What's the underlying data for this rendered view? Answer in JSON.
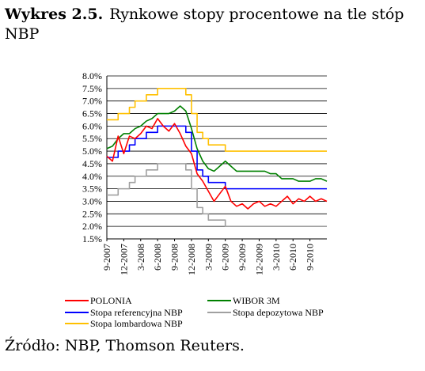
{
  "figure": {
    "label": "Wykres 2.5.",
    "title": "Rynkowe stopy procentowe na tle stóp NBP",
    "source": "Źródło: NBP, Thomson Reuters."
  },
  "chart_data": {
    "type": "line",
    "title": "Rynkowe stopy procentowe na tle stóp NBP",
    "xlabel": "",
    "ylabel": "",
    "ylim": [
      1.5,
      8.0
    ],
    "y_ticks": [
      "1.5%",
      "2.0%",
      "2.5%",
      "3.0%",
      "3.5%",
      "4.0%",
      "4.5%",
      "5.0%",
      "5.5%",
      "6.0%",
      "6.5%",
      "7.0%",
      "7.5%",
      "8.0%"
    ],
    "x_range": [
      "2007-09",
      "2010-12"
    ],
    "x_ticks": [
      "9-2007",
      "12-2007",
      "3-2008",
      "6-2008",
      "9-2008",
      "12-2008",
      "3-2009",
      "6-2009",
      "9-2009",
      "12-2009",
      "3-2010",
      "6-2010",
      "9-2010"
    ],
    "grid": "horizontal",
    "legend_position": "bottom",
    "series": [
      {
        "name": "POLONIA",
        "color": "#ff0000",
        "x": [
          "2007-09",
          "2007-10",
          "2007-11",
          "2007-12",
          "2008-01",
          "2008-02",
          "2008-03",
          "2008-04",
          "2008-05",
          "2008-06",
          "2008-07",
          "2008-08",
          "2008-09",
          "2008-10",
          "2008-11",
          "2008-12",
          "2009-01",
          "2009-02",
          "2009-03",
          "2009-04",
          "2009-05",
          "2009-06",
          "2009-07",
          "2009-08",
          "2009-09",
          "2009-10",
          "2009-11",
          "2009-12",
          "2010-01",
          "2010-02",
          "2010-03",
          "2010-04",
          "2010-05",
          "2010-06",
          "2010-07",
          "2010-08",
          "2010-09",
          "2010-10",
          "2010-11",
          "2010-12"
        ],
        "values": [
          4.8,
          4.6,
          5.6,
          4.9,
          5.6,
          5.5,
          5.7,
          6.0,
          5.9,
          6.3,
          6.0,
          5.8,
          6.1,
          5.7,
          5.2,
          4.9,
          4.1,
          3.8,
          3.4,
          3.0,
          3.3,
          3.6,
          3.0,
          2.8,
          2.9,
          2.7,
          2.9,
          3.0,
          2.8,
          2.9,
          2.8,
          3.0,
          3.2,
          2.9,
          3.1,
          3.0,
          3.2,
          3.0,
          3.1,
          3.0
        ]
      },
      {
        "name": "WIBOR 3M",
        "color": "#008000",
        "x": [
          "2007-09",
          "2007-10",
          "2007-11",
          "2007-12",
          "2008-01",
          "2008-02",
          "2008-03",
          "2008-04",
          "2008-05",
          "2008-06",
          "2008-07",
          "2008-08",
          "2008-09",
          "2008-10",
          "2008-11",
          "2008-12",
          "2009-01",
          "2009-02",
          "2009-03",
          "2009-04",
          "2009-05",
          "2009-06",
          "2009-07",
          "2009-08",
          "2009-09",
          "2009-10",
          "2009-11",
          "2009-12",
          "2010-01",
          "2010-02",
          "2010-03",
          "2010-04",
          "2010-05",
          "2010-06",
          "2010-07",
          "2010-08",
          "2010-09",
          "2010-10",
          "2010-11",
          "2010-12"
        ],
        "values": [
          5.1,
          5.2,
          5.5,
          5.7,
          5.7,
          5.9,
          6.0,
          6.2,
          6.3,
          6.5,
          6.5,
          6.5,
          6.6,
          6.8,
          6.6,
          5.9,
          5.1,
          4.6,
          4.3,
          4.2,
          4.4,
          4.6,
          4.4,
          4.2,
          4.2,
          4.2,
          4.2,
          4.2,
          4.2,
          4.1,
          4.1,
          3.9,
          3.9,
          3.9,
          3.8,
          3.8,
          3.8,
          3.9,
          3.9,
          3.8
        ]
      },
      {
        "name": "Stopa referencyjna NBP",
        "color": "#0000ff",
        "x": [
          "2007-09",
          "2007-10",
          "2007-11",
          "2007-12",
          "2008-01",
          "2008-02",
          "2008-03",
          "2008-04",
          "2008-05",
          "2008-06",
          "2008-07",
          "2008-08",
          "2008-09",
          "2008-10",
          "2008-11",
          "2008-12",
          "2009-01",
          "2009-02",
          "2009-03",
          "2009-04",
          "2009-05",
          "2009-06",
          "2009-07",
          "2009-08",
          "2009-09",
          "2009-10",
          "2009-11",
          "2009-12",
          "2010-01",
          "2010-02",
          "2010-03",
          "2010-04",
          "2010-05",
          "2010-06",
          "2010-07",
          "2010-08",
          "2010-09",
          "2010-10",
          "2010-11",
          "2010-12"
        ],
        "values": [
          4.75,
          4.75,
          5.0,
          5.0,
          5.25,
          5.5,
          5.5,
          5.75,
          5.75,
          6.0,
          6.0,
          6.0,
          6.0,
          6.0,
          5.75,
          5.0,
          4.25,
          4.0,
          3.75,
          3.75,
          3.75,
          3.5,
          3.5,
          3.5,
          3.5,
          3.5,
          3.5,
          3.5,
          3.5,
          3.5,
          3.5,
          3.5,
          3.5,
          3.5,
          3.5,
          3.5,
          3.5,
          3.5,
          3.5,
          3.5
        ]
      },
      {
        "name": "Stopa depozytowa NBP",
        "color": "#a0a0a0",
        "x": [
          "2007-09",
          "2007-10",
          "2007-11",
          "2007-12",
          "2008-01",
          "2008-02",
          "2008-03",
          "2008-04",
          "2008-05",
          "2008-06",
          "2008-07",
          "2008-08",
          "2008-09",
          "2008-10",
          "2008-11",
          "2008-12",
          "2009-01",
          "2009-02",
          "2009-03",
          "2009-04",
          "2009-05",
          "2009-06",
          "2009-07",
          "2009-08",
          "2009-09",
          "2009-10",
          "2009-11",
          "2009-12",
          "2010-01",
          "2010-02",
          "2010-03",
          "2010-04",
          "2010-05",
          "2010-06",
          "2010-07",
          "2010-08",
          "2010-09",
          "2010-10",
          "2010-11",
          "2010-12"
        ],
        "values": [
          3.25,
          3.25,
          3.5,
          3.5,
          3.75,
          4.0,
          4.0,
          4.25,
          4.25,
          4.5,
          4.5,
          4.5,
          4.5,
          4.5,
          4.25,
          3.5,
          2.75,
          2.5,
          2.25,
          2.25,
          2.25,
          2.0,
          2.0,
          2.0,
          2.0,
          2.0,
          2.0,
          2.0,
          2.0,
          2.0,
          2.0,
          2.0,
          2.0,
          2.0,
          2.0,
          2.0,
          2.0,
          2.0,
          2.0,
          2.0
        ]
      },
      {
        "name": "Stopa lombardowa NBP",
        "color": "#ffc000",
        "x": [
          "2007-09",
          "2007-10",
          "2007-11",
          "2007-12",
          "2008-01",
          "2008-02",
          "2008-03",
          "2008-04",
          "2008-05",
          "2008-06",
          "2008-07",
          "2008-08",
          "2008-09",
          "2008-10",
          "2008-11",
          "2008-12",
          "2009-01",
          "2009-02",
          "2009-03",
          "2009-04",
          "2009-05",
          "2009-06",
          "2009-07",
          "2009-08",
          "2009-09",
          "2009-10",
          "2009-11",
          "2009-12",
          "2010-01",
          "2010-02",
          "2010-03",
          "2010-04",
          "2010-05",
          "2010-06",
          "2010-07",
          "2010-08",
          "2010-09",
          "2010-10",
          "2010-11",
          "2010-12"
        ],
        "values": [
          6.25,
          6.25,
          6.5,
          6.5,
          6.75,
          7.0,
          7.0,
          7.25,
          7.25,
          7.5,
          7.5,
          7.5,
          7.5,
          7.5,
          7.25,
          6.5,
          5.75,
          5.5,
          5.25,
          5.25,
          5.25,
          5.0,
          5.0,
          5.0,
          5.0,
          5.0,
          5.0,
          5.0,
          5.0,
          5.0,
          5.0,
          5.0,
          5.0,
          5.0,
          5.0,
          5.0,
          5.0,
          5.0,
          5.0,
          5.0
        ]
      }
    ]
  }
}
